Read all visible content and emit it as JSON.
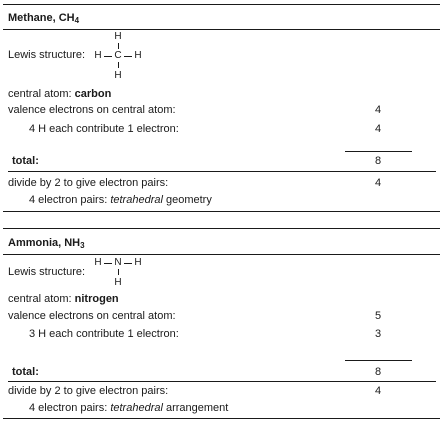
{
  "methane": {
    "title_name": "Methane, CH",
    "title_subscript": "4",
    "lewis_label": "Lewis structure:",
    "atoms": {
      "top": "H",
      "left": "H",
      "center": "C",
      "right": "H",
      "bottom": "H"
    },
    "central_atom_label": "central atom:",
    "central_atom_value": "carbon",
    "valence_label": "valence electrons on central atom:",
    "valence_value": "4",
    "contribution_label": "4 H each contribute 1 electron:",
    "contribution_value": "4",
    "total_label": "total:",
    "total_value": "8",
    "divide_label": "divide by 2 to give electron pairs:",
    "divide_value": "4",
    "geometry_prefix": "4 electron pairs: ",
    "geometry_italic": "tetrahedral",
    "geometry_suffix": " geometry"
  },
  "ammonia": {
    "title_name": "Ammonia, NH",
    "title_subscript": "3",
    "lewis_label": "Lewis structure:",
    "atoms": {
      "left": "H",
      "center": "N",
      "right": "H",
      "bottom": "H"
    },
    "central_atom_label": "central atom:",
    "central_atom_value": "nitrogen",
    "valence_label": "valence electrons on central atom:",
    "valence_value": "5",
    "contribution_label": "3 H each contribute 1 electron:",
    "contribution_value": "3",
    "total_label": "total:",
    "total_value": "8",
    "divide_label": "divide by 2 to give electron pairs:",
    "divide_value": "4",
    "geometry_prefix": "4 electron pairs: ",
    "geometry_italic": "tetrahedral",
    "geometry_suffix": " arrangement"
  }
}
